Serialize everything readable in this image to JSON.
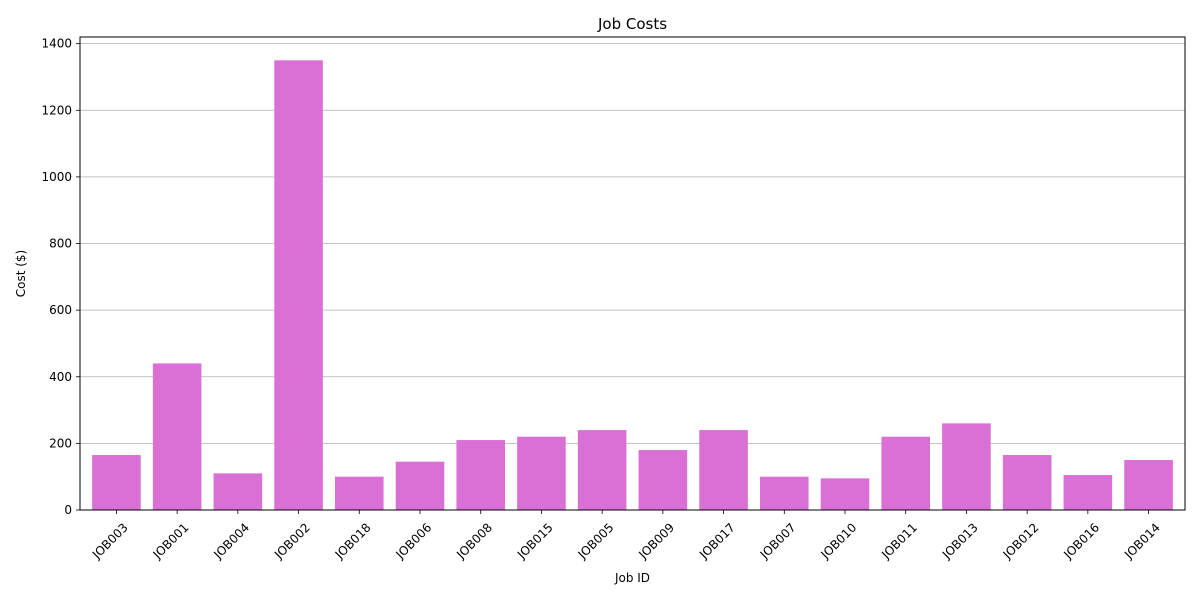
{
  "chart_data": {
    "type": "bar",
    "title": "Job Costs",
    "xlabel": "Job ID",
    "ylabel": "Cost ($)",
    "categories": [
      "JOB003",
      "JOB001",
      "JOB004",
      "JOB002",
      "JOB018",
      "JOB006",
      "JOB008",
      "JOB015",
      "JOB005",
      "JOB009",
      "JOB017",
      "JOB007",
      "JOB010",
      "JOB011",
      "JOB013",
      "JOB012",
      "JOB016",
      "JOB014"
    ],
    "values": [
      165,
      440,
      110,
      1350,
      100,
      145,
      210,
      220,
      240,
      180,
      240,
      100,
      95,
      220,
      260,
      165,
      105,
      150
    ],
    "ylim": [
      0,
      1420
    ],
    "yticks": [
      0,
      200,
      400,
      600,
      800,
      1000,
      1200,
      1400
    ],
    "grid": "y-major",
    "bar_color": "#da70d6"
  }
}
